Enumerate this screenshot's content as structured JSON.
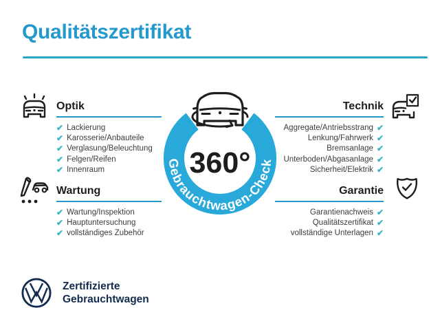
{
  "title": "Qualitätszertifikat",
  "check_glyph": "✔",
  "badge": {
    "degree_label": "360°",
    "ring_label": "Gebrauchtwagen-Check"
  },
  "sections": [
    {
      "id": "optik",
      "label": "Optik",
      "icon": "car-shine-icon",
      "items": [
        "Lackierung",
        "Karosserie/Anbauteile",
        "Verglasung/Beleuchtung",
        "Felgen/Reifen",
        "Innenraum"
      ]
    },
    {
      "id": "technik",
      "label": "Technik",
      "icon": "car-checkbox-icon",
      "items": [
        "Aggregate/Antriebsstrang",
        "Lenkung/Fahrwerk",
        "Bremsanlage",
        "Unterboden/Abgasanlage",
        "Sicherheit/Elektrik"
      ]
    },
    {
      "id": "wartung",
      "label": "Wartung",
      "icon": "pencil-car-icon",
      "items": [
        "Wartung/Inspektion",
        "Hauptuntersuchung",
        "vollständiges Zubehör"
      ]
    },
    {
      "id": "garantie",
      "label": "Garantie",
      "icon": "shield-check-icon",
      "items": [
        "Garantienachweis",
        "Qualitätszertifikat",
        "vollständige Unterlagen"
      ]
    }
  ],
  "footer": {
    "line1": "Zertifizierte",
    "line2": "Gebrauchtwagen",
    "brand": "VW"
  },
  "colors": {
    "blue": "#2598cc",
    "rule": "#2ba4c6",
    "ring": "#29a8da",
    "check": "#36b5c6",
    "dark": "#1d1d1b",
    "listtext": "#3c3c3c",
    "navy": "#132c4e"
  }
}
